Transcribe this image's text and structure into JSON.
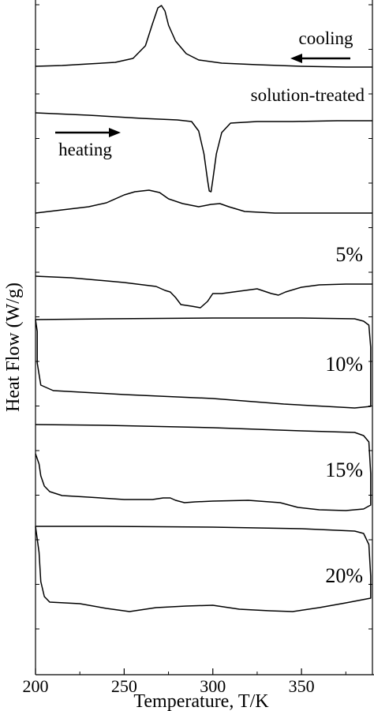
{
  "chart_data": {
    "type": "line",
    "xlabel": "Temperature, T/K",
    "ylabel": "Heat Flow (W/g)",
    "xlim": [
      200,
      390
    ],
    "x_ticks": [
      200,
      250,
      300,
      350
    ],
    "grid": false,
    "annotations": {
      "cooling": "cooling",
      "heating": "heating"
    },
    "series": [
      {
        "name": "solution-treated",
        "mode": "cooling",
        "points": [
          [
            200,
            84
          ],
          [
            215,
            83
          ],
          [
            230,
            81
          ],
          [
            245,
            79
          ],
          [
            255,
            74
          ],
          [
            262,
            58
          ],
          [
            266,
            30
          ],
          [
            269,
            10
          ],
          [
            271,
            7
          ],
          [
            273,
            14
          ],
          [
            275,
            32
          ],
          [
            279,
            52
          ],
          [
            285,
            68
          ],
          [
            292,
            76
          ],
          [
            305,
            80
          ],
          [
            325,
            82
          ],
          [
            350,
            84
          ],
          [
            375,
            85
          ],
          [
            390,
            85
          ]
        ]
      },
      {
        "name": "solution-treated",
        "mode": "heating",
        "points": [
          [
            200,
            143
          ],
          [
            230,
            146
          ],
          [
            260,
            150
          ],
          [
            280,
            152
          ],
          [
            288,
            154
          ],
          [
            292,
            166
          ],
          [
            295,
            195
          ],
          [
            297,
            228
          ],
          [
            298,
            242
          ],
          [
            299,
            243
          ],
          [
            300,
            228
          ],
          [
            302,
            195
          ],
          [
            305,
            168
          ],
          [
            310,
            156
          ],
          [
            325,
            154
          ],
          [
            345,
            154
          ],
          [
            370,
            153
          ],
          [
            390,
            153
          ]
        ]
      },
      {
        "name": "solution-treated",
        "mode": "heating-2",
        "points": [
          [
            200,
            270
          ],
          [
            215,
            266
          ],
          [
            230,
            262
          ],
          [
            240,
            257
          ],
          [
            250,
            247
          ],
          [
            256,
            243
          ],
          [
            264,
            241
          ],
          [
            270,
            244
          ],
          [
            275,
            252
          ],
          [
            283,
            258
          ],
          [
            292,
            262
          ],
          [
            299,
            259
          ],
          [
            304,
            258
          ],
          [
            309,
            262
          ],
          [
            318,
            268
          ],
          [
            335,
            270
          ],
          [
            360,
            270
          ],
          [
            390,
            270
          ]
        ]
      },
      {
        "name": "5%",
        "points": [
          [
            200,
            350
          ],
          [
            220,
            352
          ],
          [
            250,
            358
          ],
          [
            268,
            363
          ],
          [
            273,
            368
          ],
          [
            276,
            370
          ],
          [
            279,
            377
          ],
          [
            282,
            386
          ],
          [
            288,
            388
          ],
          [
            293,
            390
          ],
          [
            297,
            382
          ],
          [
            300,
            372
          ],
          [
            305,
            372
          ],
          [
            315,
            369
          ],
          [
            325,
            366
          ],
          [
            333,
            372
          ],
          [
            337,
            374
          ],
          [
            341,
            370
          ],
          [
            350,
            364
          ],
          [
            360,
            361
          ],
          [
            375,
            360
          ],
          [
            390,
            360
          ]
        ]
      },
      {
        "name": "10%",
        "points": [
          [
            200,
            405
          ],
          [
            240,
            404
          ],
          [
            300,
            403
          ],
          [
            350,
            403
          ],
          [
            380,
            404
          ],
          [
            385,
            407
          ],
          [
            388,
            412
          ],
          [
            389,
            440
          ],
          [
            389,
            500
          ],
          [
            389,
            515
          ],
          [
            380,
            517
          ],
          [
            340,
            512
          ],
          [
            300,
            505
          ],
          [
            250,
            500
          ],
          [
            210,
            495
          ],
          [
            203,
            488
          ],
          [
            201,
            460
          ],
          [
            201,
            420
          ],
          [
            200,
            405
          ]
        ]
      },
      {
        "name": "15%",
        "points": [
          [
            200,
            538
          ],
          [
            240,
            539
          ],
          [
            300,
            542
          ],
          [
            350,
            546
          ],
          [
            380,
            548
          ],
          [
            385,
            552
          ],
          [
            388,
            560
          ],
          [
            389,
            600
          ],
          [
            389,
            640
          ],
          [
            385,
            645
          ],
          [
            375,
            647
          ],
          [
            360,
            646
          ],
          [
            348,
            643
          ],
          [
            338,
            637
          ],
          [
            320,
            634
          ],
          [
            300,
            635
          ],
          [
            290,
            636
          ],
          [
            284,
            637
          ],
          [
            279,
            634
          ],
          [
            276,
            631
          ],
          [
            272,
            631
          ],
          [
            266,
            633
          ],
          [
            250,
            633
          ],
          [
            230,
            630
          ],
          [
            215,
            628
          ],
          [
            208,
            623
          ],
          [
            205,
            616
          ],
          [
            203,
            603
          ],
          [
            202,
            588
          ],
          [
            200,
            575
          ]
        ]
      },
      {
        "name": "20%",
        "points": [
          [
            200,
            667
          ],
          [
            240,
            667
          ],
          [
            300,
            668
          ],
          [
            350,
            670
          ],
          [
            380,
            673
          ],
          [
            385,
            676
          ],
          [
            388,
            690
          ],
          [
            389,
            730
          ],
          [
            389,
            758
          ],
          [
            375,
            764
          ],
          [
            360,
            770
          ],
          [
            345,
            775
          ],
          [
            332,
            774
          ],
          [
            315,
            772
          ],
          [
            300,
            767
          ],
          [
            285,
            768
          ],
          [
            268,
            770
          ],
          [
            253,
            775
          ],
          [
            240,
            771
          ],
          [
            225,
            765
          ],
          [
            208,
            763
          ],
          [
            205,
            756
          ],
          [
            203,
            737
          ],
          [
            202,
            700
          ],
          [
            200,
            667
          ]
        ]
      }
    ]
  }
}
